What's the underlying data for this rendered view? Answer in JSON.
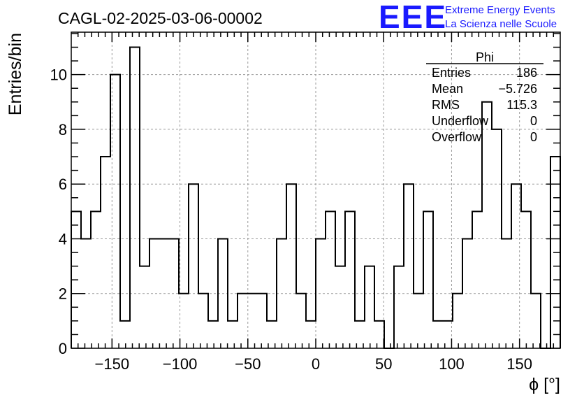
{
  "chart_data": {
    "type": "bar",
    "title": "CAGL-02-2025-03-06-00002",
    "xlabel": "ϕ [°]",
    "ylabel": "Entries/bin",
    "xlim": [
      -180,
      180
    ],
    "ylim": [
      0,
      11.55
    ],
    "bin_width": 7.2,
    "x_ticks": [
      -150,
      -100,
      -50,
      0,
      50,
      100,
      150
    ],
    "x_tick_labels": [
      "−150",
      "−100",
      "−50",
      "0",
      "50",
      "100",
      "150"
    ],
    "y_ticks": [
      0,
      2,
      4,
      6,
      8,
      10
    ],
    "y_tick_labels": [
      "0",
      "2",
      "4",
      "6",
      "8",
      "10"
    ],
    "grid": true,
    "values": [
      5,
      4,
      5,
      7,
      10,
      1,
      11,
      3,
      4,
      4,
      4,
      2,
      6,
      2,
      1,
      4,
      1,
      2,
      2,
      2,
      1,
      4,
      6,
      2,
      1,
      4,
      5,
      3,
      5,
      1,
      3,
      1,
      0,
      3,
      6,
      2,
      5,
      1,
      1,
      2,
      4,
      5,
      9,
      8,
      4,
      6,
      5,
      2,
      0,
      7
    ],
    "stats": {
      "name": "Phi",
      "rows": [
        {
          "label": "Entries",
          "value": "186"
        },
        {
          "label": "Mean",
          "value": "−5.726"
        },
        {
          "label": "RMS",
          "value": "115.3"
        },
        {
          "label": "Underflow",
          "value": "0"
        },
        {
          "label": "Overflow",
          "value": "0"
        }
      ]
    }
  },
  "logo": {
    "mark": "EEE",
    "line1": "Extreme Energy Events",
    "line2": "La Scienza nelle Scuole"
  }
}
